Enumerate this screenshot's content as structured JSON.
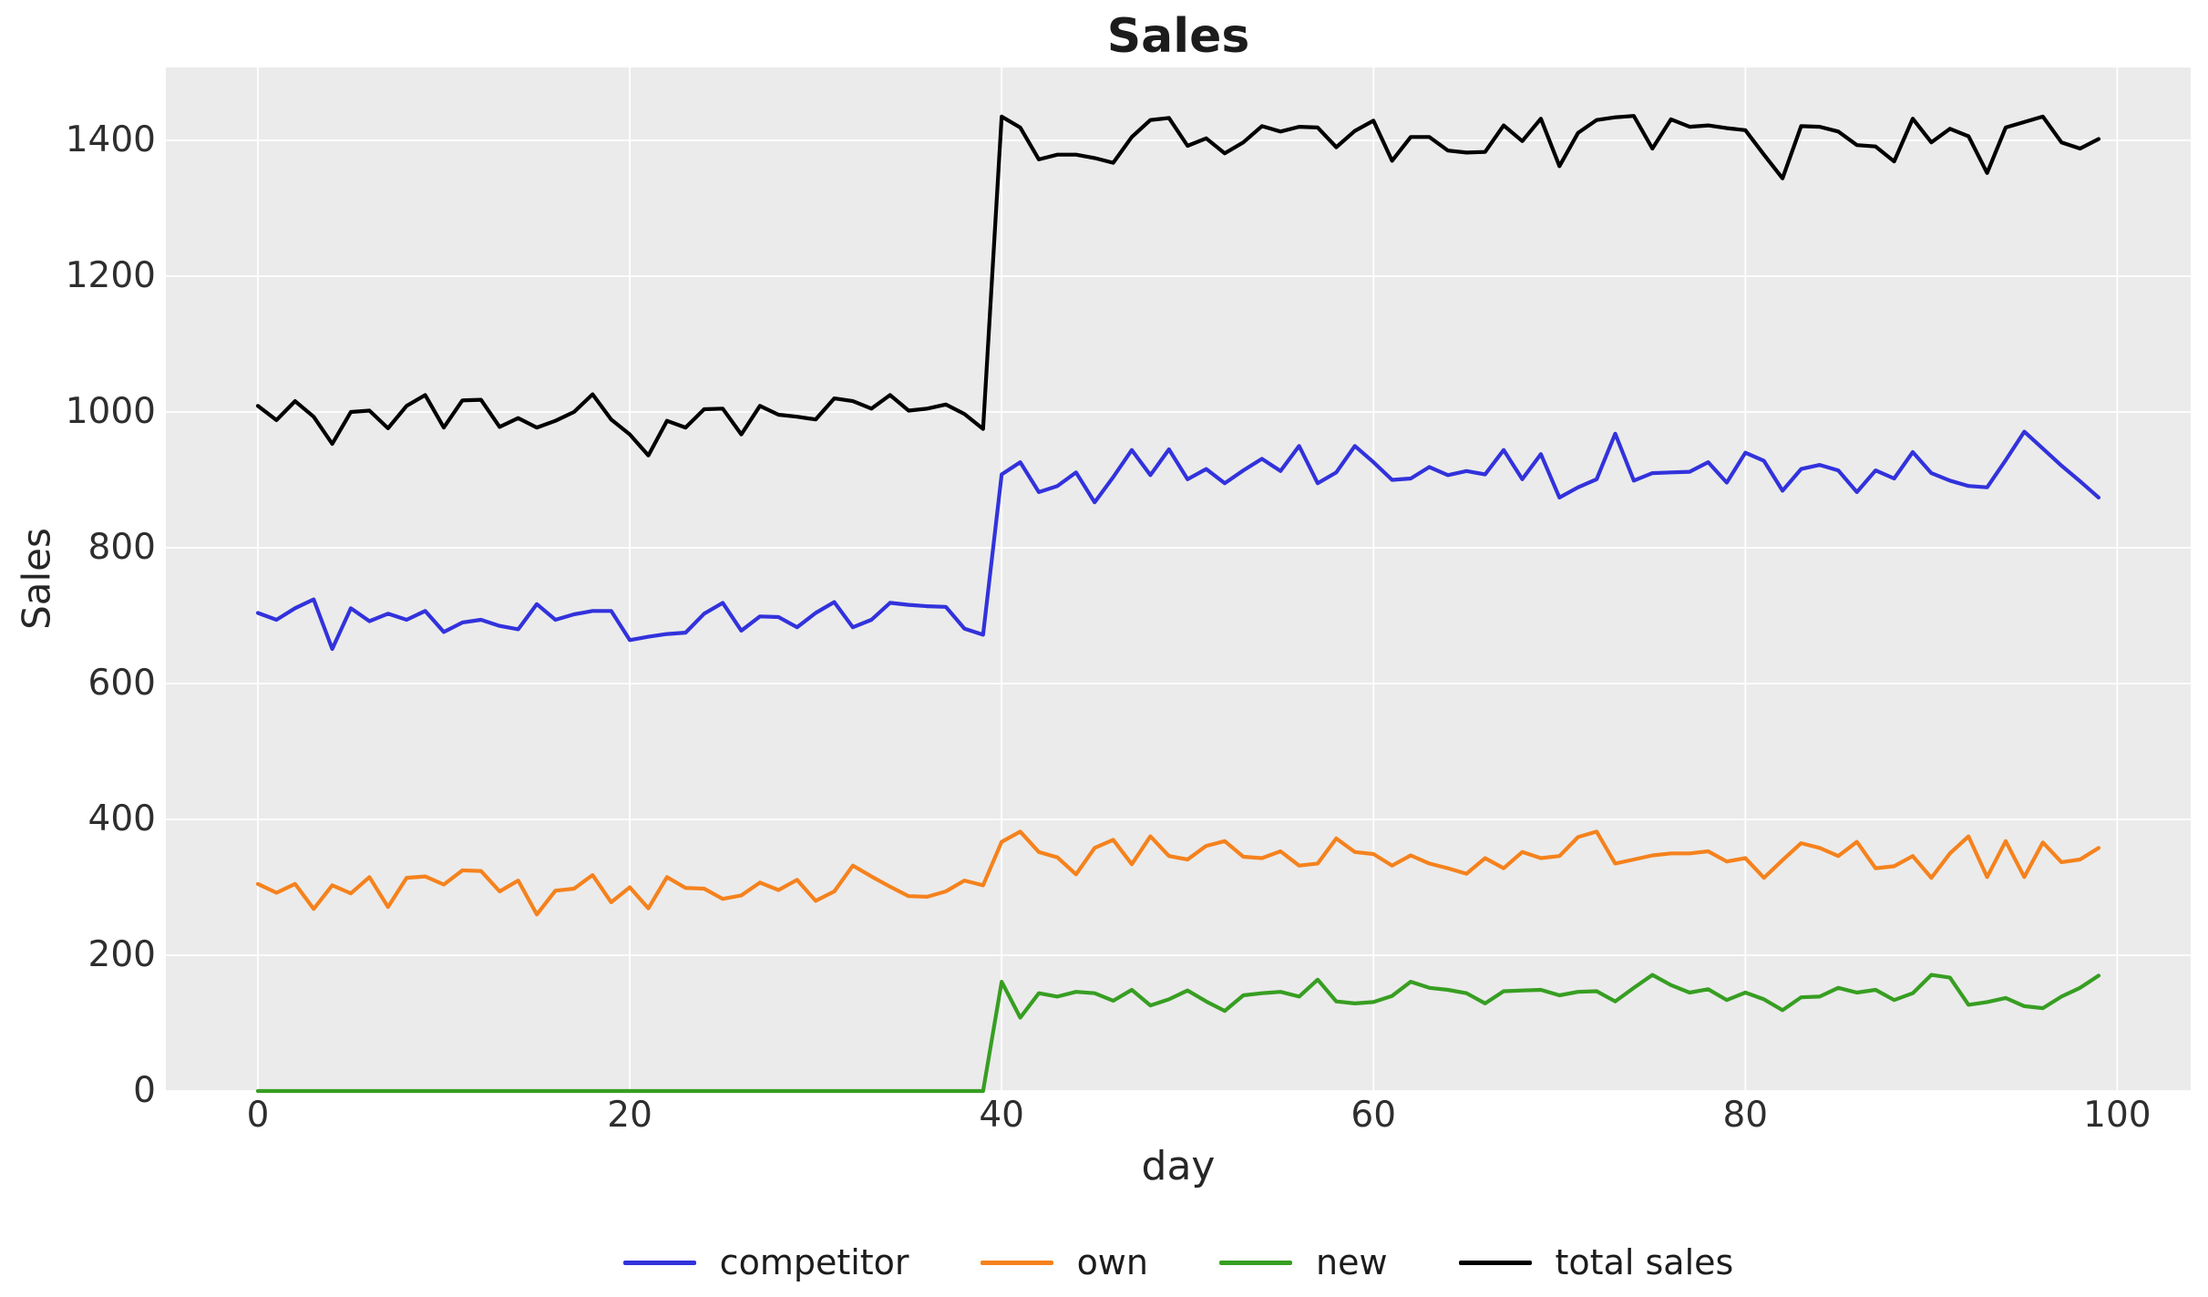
{
  "chart": {
    "title": "Sales",
    "xlabel": "day",
    "ylabel": "Sales"
  },
  "axes": {
    "x_ticks": [
      "0",
      "20",
      "40",
      "60",
      "80",
      "100"
    ],
    "y_ticks": [
      "0",
      "200",
      "400",
      "600",
      "800",
      "1000",
      "1200",
      "1400"
    ]
  },
  "legend": {
    "items": [
      {
        "label": "competitor",
        "color": "#3232dc"
      },
      {
        "label": "own",
        "color": "#f5821d"
      },
      {
        "label": "new",
        "color": "#379e22"
      },
      {
        "label": "total sales",
        "color": "#000000"
      }
    ]
  },
  "chart_data": {
    "type": "line",
    "title": "Sales",
    "xlabel": "day",
    "ylabel": "Sales",
    "grid": true,
    "plot_background": "#ebebeb",
    "grid_color": "#ffffff",
    "legend_position": "lower center",
    "xlim": [
      -4.95,
      103.95
    ],
    "ylim": [
      0,
      1507.4
    ],
    "x_tick_values": [
      0,
      20,
      40,
      60,
      80,
      100
    ],
    "y_tick_values": [
      0,
      200,
      400,
      600,
      800,
      1000,
      1200,
      1400
    ],
    "x": [
      0,
      1,
      2,
      3,
      4,
      5,
      6,
      7,
      8,
      9,
      10,
      11,
      12,
      13,
      14,
      15,
      16,
      17,
      18,
      19,
      20,
      21,
      22,
      23,
      24,
      25,
      26,
      27,
      28,
      29,
      30,
      31,
      32,
      33,
      34,
      35,
      36,
      37,
      38,
      39,
      40,
      41,
      42,
      43,
      44,
      45,
      46,
      47,
      48,
      49,
      50,
      51,
      52,
      53,
      54,
      55,
      56,
      57,
      58,
      59,
      60,
      61,
      62,
      63,
      64,
      65,
      66,
      67,
      68,
      69,
      70,
      71,
      72,
      73,
      74,
      75,
      76,
      77,
      78,
      79,
      80,
      81,
      82,
      83,
      84,
      85,
      86,
      87,
      88,
      89,
      90,
      91,
      92,
      93,
      94,
      95,
      96,
      97,
      98,
      99
    ],
    "series": [
      {
        "name": "competitor",
        "color": "#3232dc",
        "values": [
          704,
          694,
          711,
          724,
          651,
          711,
          692,
          703,
          694,
          707,
          676,
          690,
          694,
          685,
          680,
          717,
          694,
          702,
          707,
          707,
          664,
          669,
          673,
          675,
          703,
          719,
          678,
          699,
          698,
          683,
          704,
          720,
          683,
          694,
          719,
          716,
          714,
          713,
          681,
          672,
          908,
          926,
          882,
          891,
          911,
          867,
          904,
          944,
          907,
          945,
          901,
          916,
          895,
          914,
          931,
          913,
          950,
          895,
          911,
          950,
          926,
          900,
          902,
          919,
          907,
          913,
          908,
          944,
          901,
          938,
          874,
          889,
          901,
          968,
          899,
          910,
          911,
          912,
          926,
          896,
          940,
          928,
          884,
          916,
          922,
          914,
          882,
          914,
          902,
          941,
          910,
          899,
          891,
          889,
          929,
          971,
          946,
          921,
          898,
          874
        ]
      },
      {
        "name": "own",
        "color": "#f5821d",
        "values": [
          305,
          292,
          305,
          268,
          303,
          291,
          315,
          271,
          314,
          316,
          304,
          325,
          324,
          294,
          310,
          260,
          295,
          298,
          318,
          278,
          300,
          269,
          315,
          299,
          298,
          283,
          288,
          307,
          296,
          311,
          280,
          294,
          332,
          316,
          301,
          287,
          286,
          294,
          310,
          303,
          367,
          382,
          352,
          344,
          319,
          358,
          370,
          334,
          375,
          346,
          341,
          361,
          368,
          345,
          343,
          353,
          332,
          335,
          372,
          352,
          349,
          332,
          347,
          335,
          328,
          320,
          343,
          328,
          352,
          343,
          346,
          374,
          382,
          335,
          341,
          347,
          350,
          350,
          353,
          338,
          343,
          314,
          340,
          365,
          358,
          346,
          367,
          328,
          331,
          346,
          314,
          350,
          375,
          315,
          368,
          315,
          366,
          337,
          341,
          358
        ]
      },
      {
        "name": "new",
        "color": "#379e22",
        "values": [
          0,
          0,
          0,
          0,
          0,
          0,
          0,
          0,
          0,
          0,
          0,
          0,
          0,
          0,
          0,
          0,
          0,
          0,
          0,
          0,
          0,
          0,
          0,
          0,
          0,
          0,
          0,
          0,
          0,
          0,
          0,
          0,
          0,
          0,
          0,
          0,
          0,
          0,
          0,
          0,
          161,
          108,
          144,
          139,
          146,
          144,
          133,
          149,
          126,
          135,
          148,
          132,
          118,
          141,
          144,
          146,
          139,
          164,
          132,
          129,
          131,
          140,
          161,
          152,
          149,
          144,
          129,
          147,
          148,
          149,
          141,
          146,
          147,
          132,
          152,
          171,
          156,
          145,
          150,
          134,
          145,
          135,
          119,
          138,
          139,
          152,
          145,
          149,
          134,
          144,
          171,
          167,
          127,
          131,
          137,
          125,
          122,
          139,
          152,
          170
        ]
      },
      {
        "name": "total sales",
        "color": "#000000",
        "values": [
          1009,
          988,
          1016,
          993,
          953,
          1000,
          1002,
          976,
          1009,
          1025,
          977,
          1017,
          1018,
          978,
          991,
          977,
          987,
          1000,
          1026,
          989,
          967,
          936,
          987,
          977,
          1004,
          1005,
          967,
          1009,
          996,
          993,
          989,
          1020,
          1016,
          1005,
          1025,
          1002,
          1005,
          1011,
          997,
          975,
          1435,
          1419,
          1372,
          1379,
          1379,
          1374,
          1367,
          1405,
          1430,
          1433,
          1392,
          1403,
          1381,
          1397,
          1421,
          1413,
          1420,
          1419,
          1390,
          1414,
          1429,
          1370,
          1405,
          1405,
          1385,
          1382,
          1383,
          1422,
          1399,
          1432,
          1362,
          1411,
          1430,
          1434,
          1436,
          1388,
          1431,
          1420,
          1422,
          1418,
          1415,
          1379,
          1344,
          1421,
          1420,
          1413,
          1393,
          1391,
          1369,
          1432,
          1397,
          1417,
          1406,
          1352,
          1419,
          1427,
          1435,
          1397,
          1388,
          1402
        ]
      }
    ]
  }
}
